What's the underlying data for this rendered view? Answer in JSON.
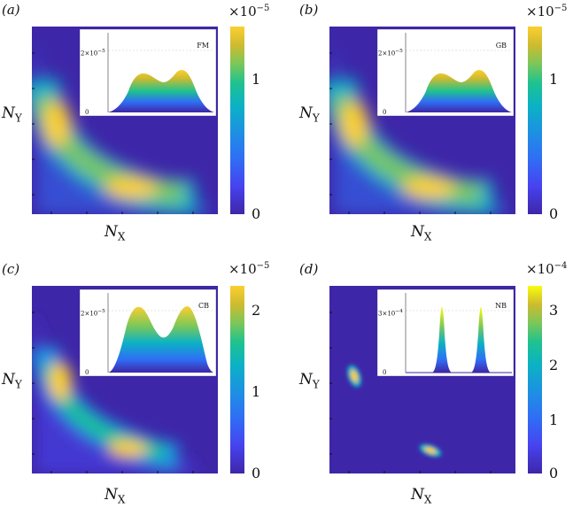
{
  "colors": {
    "viridis": [
      "#3e26a8",
      "#4743f0",
      "#2f6ff5",
      "#1b94e0",
      "#0bb2c4",
      "#1fc28f",
      "#7ac75a",
      "#cdbb2f",
      "#fbcf2f",
      "#f9fb0e"
    ],
    "inset_bg": "#ffffff"
  },
  "axis_labels": {
    "y_main": "N",
    "y_sub": "Y",
    "x_main": "N",
    "x_sub": "X"
  },
  "panels": [
    {
      "label": "(a)",
      "exponent_prefix": "×10",
      "exponent": "−5",
      "colorbar_ticks": [
        "1",
        "0"
      ],
      "inset_ymax": "2×10",
      "inset_ymax_exp": "−5",
      "inset_y0": "0",
      "inset_tag": "FM"
    },
    {
      "label": "(b)",
      "exponent_prefix": "×10",
      "exponent": "−5",
      "colorbar_ticks": [
        "1",
        "0"
      ],
      "inset_ymax": "2×10",
      "inset_ymax_exp": "−5",
      "inset_y0": "0",
      "inset_tag": "GB"
    },
    {
      "label": "(c)",
      "exponent_prefix": "×10",
      "exponent": "−5",
      "colorbar_ticks": [
        "2",
        "1",
        "0"
      ],
      "inset_ymax": "2×10",
      "inset_ymax_exp": "−5",
      "inset_y0": "0",
      "inset_tag": "CB"
    },
    {
      "label": "(d)",
      "exponent_prefix": "×10",
      "exponent": "−4",
      "colorbar_ticks": [
        "3",
        "2",
        "1",
        "0"
      ],
      "inset_ymax": "3×10",
      "inset_ymax_exp": "−4",
      "inset_y0": "0",
      "inset_tag": "NB"
    }
  ],
  "chart_data": [
    {
      "type": "heatmap",
      "panel": "(a)",
      "xlabel": "N_X",
      "ylabel": "N_Y",
      "colorbar_range": [
        0,
        1.35e-05
      ],
      "colorbar_ticks": [
        0,
        1e-05
      ],
      "description_modes": 2,
      "inset": {
        "type": "area",
        "ylim": [
          0,
          2e-05
        ],
        "peaks": 2
      }
    },
    {
      "type": "heatmap",
      "panel": "(b)",
      "xlabel": "N_X",
      "ylabel": "N_Y",
      "colorbar_range": [
        0,
        1.35e-05
      ],
      "colorbar_ticks": [
        0,
        1e-05
      ],
      "inset": {
        "type": "area",
        "ylim": [
          0,
          2e-05
        ],
        "peaks": 2
      }
    },
    {
      "type": "heatmap",
      "panel": "(c)",
      "xlabel": "N_X",
      "ylabel": "N_Y",
      "colorbar_range": [
        0,
        2.2e-05
      ],
      "colorbar_ticks": [
        0,
        1e-05,
        2e-05
      ],
      "inset": {
        "type": "area",
        "ylim": [
          0,
          2e-05
        ],
        "peaks": 2
      }
    },
    {
      "type": "heatmap",
      "panel": "(d)",
      "xlabel": "N_X",
      "ylabel": "N_Y",
      "colorbar_range": [
        0,
        0.00034
      ],
      "colorbar_ticks": [
        0,
        0.0001,
        0.0002,
        0.0003
      ],
      "inset": {
        "type": "area",
        "ylim": [
          0,
          0.0003
        ],
        "peaks": 2
      }
    }
  ]
}
